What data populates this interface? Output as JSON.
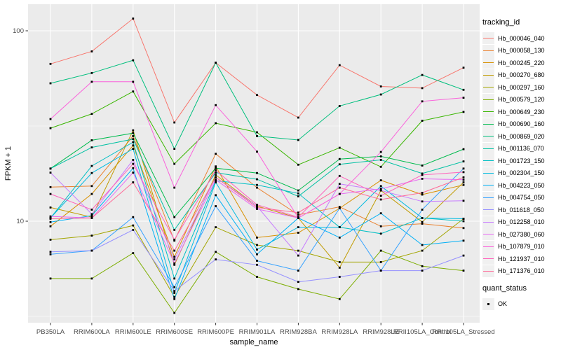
{
  "chart_data": {
    "type": "line",
    "title": "",
    "xlabel": "sample_name",
    "ylabel": "FPKM + 1",
    "y_scale": "log10",
    "y_tick_labels": [
      "100",
      "10"
    ],
    "y_ticks": [
      100,
      10
    ],
    "y_minor_ticks": [
      31.62,
      3.162
    ],
    "ylim": [
      2.93,
      138
    ],
    "grid": true,
    "legend_position": "right",
    "point_shape": "small-black-square",
    "categories": [
      "PB350LA",
      "RRIM600LA",
      "RRIM600LE",
      "RRIM600SE",
      "RRIM600PE",
      "RRIM901LA",
      "RRIM928BA",
      "RRIM928LA",
      "RRIM928LE",
      "RRII105LA_Control",
      "RRII105LA_Stressed"
    ],
    "series": [
      {
        "name": "Hb_000046_040",
        "color": "#F8766D",
        "values": [
          67,
          78,
          116,
          33,
          68,
          46,
          35,
          66,
          51,
          50,
          64
        ]
      },
      {
        "name": "Hb_000058_130",
        "color": "#EA8331",
        "values": [
          15.1,
          15.3,
          28,
          7.9,
          22.6,
          15.0,
          10.8,
          11.9,
          9.4,
          9.7,
          9.2
        ]
      },
      {
        "name": "Hb_000245_220",
        "color": "#D89000",
        "values": [
          9.4,
          13.9,
          25,
          6.5,
          19.4,
          8.2,
          8.7,
          11.7,
          16.4,
          13.8,
          15.5
        ]
      },
      {
        "name": "Hb_000270_680",
        "color": "#C09B00",
        "values": [
          11.8,
          10.5,
          30,
          5.9,
          17.5,
          12.0,
          10.4,
          5.7,
          14.5,
          9.9,
          16.0
        ]
      },
      {
        "name": "Hb_000297_160",
        "color": "#A3A500",
        "values": [
          8.0,
          8.4,
          9.5,
          4.0,
          9.3,
          7.5,
          7.0,
          6.1,
          6.1,
          7.0,
          10.3
        ]
      },
      {
        "name": "Hb_000579_120",
        "color": "#7CAE00",
        "values": [
          5.0,
          5.0,
          6.8,
          3.3,
          6.9,
          5.1,
          4.4,
          3.9,
          7.0,
          5.8,
          5.5
        ]
      },
      {
        "name": "Hb_000649_230",
        "color": "#39B600",
        "values": [
          30.8,
          36.6,
          48,
          20,
          32.7,
          29.3,
          19.8,
          24.3,
          19.3,
          33.7,
          37.5
        ]
      },
      {
        "name": "Hb_000690_160",
        "color": "#00BB4E",
        "values": [
          18.9,
          26.6,
          29,
          10.5,
          19.0,
          17.9,
          14.5,
          21.2,
          21.9,
          19.6,
          23.9
        ]
      },
      {
        "name": "Hb_000869_020",
        "color": "#00BF7D",
        "values": [
          53,
          60,
          70,
          24,
          68,
          28,
          26.7,
          40.3,
          46.3,
          58.6,
          49
        ]
      },
      {
        "name": "Hb_001136_070",
        "color": "#00C1A3",
        "values": [
          18.9,
          24.4,
          27,
          9.0,
          18.0,
          16.6,
          13.5,
          19.9,
          21.0,
          17.8,
          20.6
        ]
      },
      {
        "name": "Hb_001723_150",
        "color": "#00BFC4",
        "values": [
          10.4,
          19.5,
          26,
          5.0,
          16.3,
          15.5,
          14.0,
          9.3,
          8.6,
          10.4,
          10.0
        ]
      },
      {
        "name": "Hb_002304_150",
        "color": "#00BAE0",
        "values": [
          10.4,
          17.9,
          24,
          4.2,
          16.0,
          7.1,
          9.3,
          9.3,
          15.3,
          10.4,
          10.3
        ]
      },
      {
        "name": "Hb_004223_050",
        "color": "#00B0F6",
        "values": [
          9.9,
          10.7,
          19,
          3.9,
          13.7,
          6.7,
          10.4,
          8.2,
          11.0,
          7.5,
          7.9
        ]
      },
      {
        "name": "Hb_004754_050",
        "color": "#35A2FF",
        "values": [
          6.7,
          7.0,
          10.5,
          4.5,
          12.0,
          6.2,
          5.5,
          11.7,
          5.5,
          11.5,
          18.9
        ]
      },
      {
        "name": "Hb_011618_050",
        "color": "#9590FF",
        "values": [
          6.9,
          7.0,
          9.0,
          4.3,
          6.3,
          5.9,
          4.8,
          5.1,
          5.5,
          5.5,
          6.6
        ]
      },
      {
        "name": "Hb_012258_010",
        "color": "#C77CFF",
        "values": [
          18.0,
          10.9,
          21,
          6.3,
          17.0,
          12.0,
          6.6,
          15.7,
          14.5,
          12.7,
          12.8
        ]
      },
      {
        "name": "Hb_027380_060",
        "color": "#E76BF3",
        "values": [
          10.6,
          10.4,
          18,
          6.0,
          16.5,
          11.6,
          10.4,
          13.9,
          14.8,
          16.7,
          16.5
        ]
      },
      {
        "name": "Hb_107879_010",
        "color": "#FA62DB",
        "values": [
          34.4,
          54,
          54,
          15,
          40.7,
          23.2,
          10.4,
          13.9,
          23.1,
          42.6,
          44.5
        ]
      },
      {
        "name": "Hb_121937_010",
        "color": "#FF62BC",
        "values": [
          13.9,
          11.5,
          20,
          8.0,
          18.5,
          12.2,
          10.5,
          17.3,
          13.6,
          17.5,
          18.1
        ]
      },
      {
        "name": "Hb_171376_010",
        "color": "#FF6A98",
        "values": [
          10.3,
          10.4,
          16,
          7.0,
          17.0,
          11.8,
          11.1,
          15.0,
          13.0,
          14.1,
          17.0
        ]
      }
    ],
    "legend": {
      "color_title": "tracking_id",
      "shape_title": "quant_status",
      "shape_item": "OK"
    }
  },
  "style": {
    "panel_bg": "#EBEBEB",
    "grid_color": "#FFFFFF",
    "point_color": "#000000",
    "tick_label_color": "#4D4D4D",
    "axis_title_color": "#000000",
    "legend_key_bg": "#F0F0F0"
  }
}
